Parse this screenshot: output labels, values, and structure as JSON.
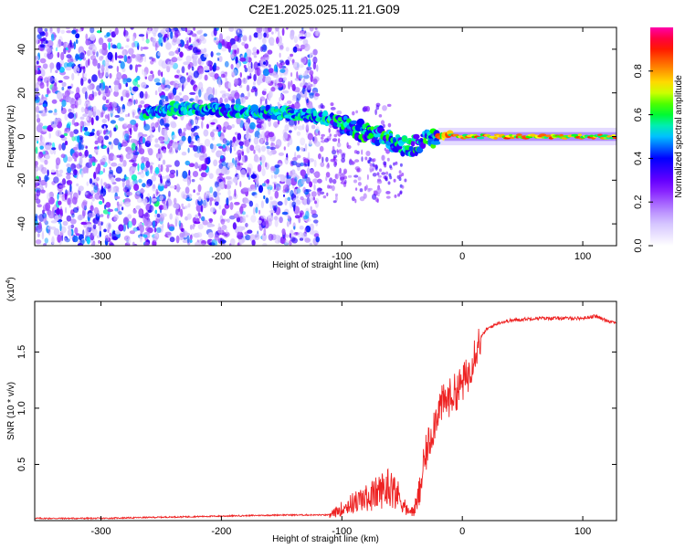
{
  "title": "C2E1.2025.025.11.21.G09",
  "chart_data": [
    {
      "type": "heatmap",
      "xlabel": "Height of straight line (km)",
      "ylabel": "Frequency (Hz)",
      "xlim": [
        -355,
        128
      ],
      "ylim": [
        -50,
        50
      ],
      "x_ticks": [
        -300,
        -200,
        -100,
        0,
        100
      ],
      "y_ticks": [
        -40,
        -20,
        0,
        20,
        40
      ],
      "grid": false,
      "colorbar": {
        "label": "Normalized spectral amplitude",
        "range": [
          0.0,
          1.0
        ],
        "ticks": [
          0.0,
          0.2,
          0.4,
          0.6,
          0.8
        ],
        "colormap": [
          "#ffffff",
          "#c8b4ff",
          "#7000ff",
          "#0000ff",
          "#00e0ff",
          "#00ff00",
          "#ffff00",
          "#ff8000",
          "#ff0000",
          "#ff00a0"
        ]
      },
      "ridge": {
        "x": [
          -265,
          -240,
          -200,
          -160,
          -130,
          -110,
          -95,
          -80,
          -65,
          -50,
          -40,
          -30,
          -20,
          -10,
          0,
          20,
          60,
          100,
          128
        ],
        "y": [
          10,
          13,
          12,
          11,
          10,
          8,
          5,
          2,
          -1,
          -4,
          -4,
          -2,
          0,
          1,
          0,
          0,
          0,
          0,
          0
        ]
      }
    },
    {
      "type": "line",
      "xlabel": "Height of straight line (km)",
      "ylabel": "SNR (10 * v/v)",
      "ylabel_exponent": "(x10",
      "ylabel_exponent_power": "4",
      "ylabel_exponent_close": ")",
      "xlim": [
        -355,
        128
      ],
      "ylim": [
        0,
        1.95
      ],
      "x_ticks": [
        -300,
        -200,
        -100,
        0,
        100
      ],
      "y_ticks": [
        0.5,
        1.0,
        1.5
      ],
      "y_tick_labels": [
        "0.5",
        "1.0",
        "1.5"
      ],
      "grid": false,
      "series": [
        {
          "color": "#ee2222",
          "x": [
            -355,
            -300,
            -250,
            -200,
            -150,
            -110,
            -100,
            -90,
            -80,
            -70,
            -60,
            -50,
            -45,
            -40,
            -35,
            -30,
            -25,
            -20,
            -15,
            -10,
            -5,
            0,
            5,
            10,
            15,
            20,
            30,
            40,
            60,
            80,
            100,
            110,
            120,
            128
          ],
          "y": [
            0.02,
            0.02,
            0.03,
            0.04,
            0.05,
            0.05,
            0.12,
            0.18,
            0.22,
            0.28,
            0.35,
            0.2,
            0.08,
            0.1,
            0.3,
            0.6,
            0.8,
            1.0,
            1.05,
            1.1,
            1.15,
            1.22,
            1.3,
            1.5,
            1.62,
            1.7,
            1.76,
            1.78,
            1.8,
            1.8,
            1.8,
            1.82,
            1.78,
            1.76
          ]
        }
      ]
    }
  ]
}
